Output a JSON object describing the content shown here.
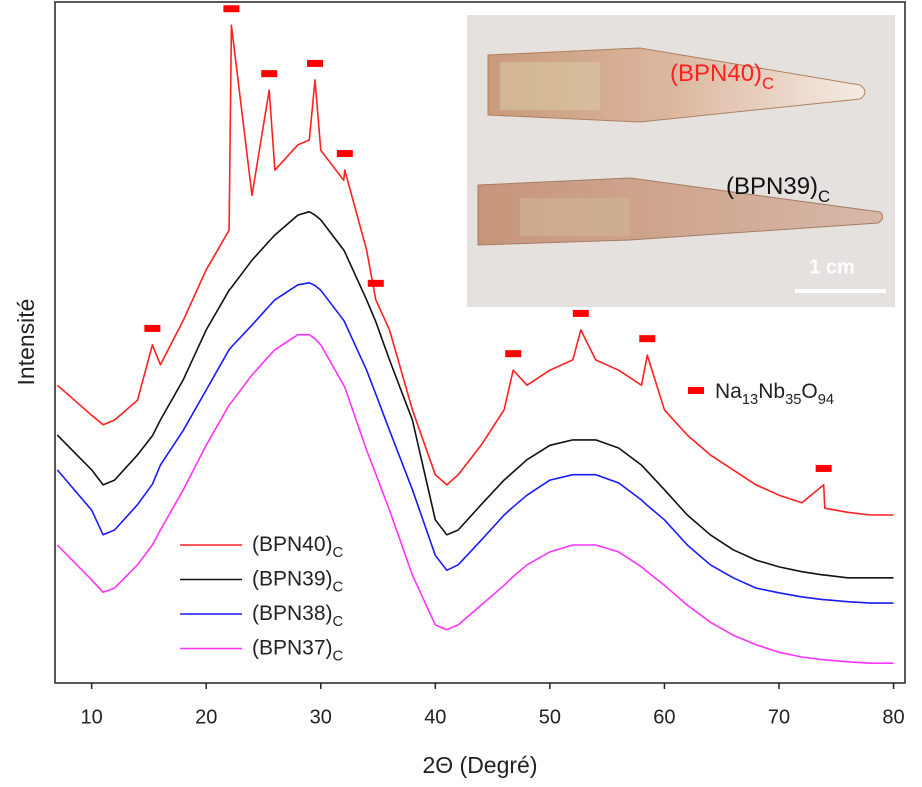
{
  "chart_data": {
    "type": "line",
    "xlabel": "2Θ (Degré)",
    "ylabel": "Intensité",
    "xlim": [
      6.8,
      81
    ],
    "xticks": [
      10,
      20,
      30,
      40,
      50,
      60,
      70,
      80
    ],
    "ylim": [
      0,
      100
    ],
    "x": [
      7,
      10,
      11,
      12,
      14,
      15.3,
      16,
      18,
      20,
      22,
      22.2,
      24,
      25.5,
      26,
      28,
      29,
      29.5,
      30,
      32,
      32.1,
      34,
      34.8,
      36,
      38,
      40,
      41,
      42,
      44,
      46,
      46.8,
      48,
      50,
      52,
      52.7,
      54,
      56,
      58,
      58.5,
      60,
      62,
      64,
      66,
      68,
      70,
      72,
      73.9,
      74,
      76,
      78,
      80
    ],
    "series": [
      {
        "name": "(BPN40)C",
        "color": "#ff2020",
        "values": [
          43.6,
          39.2,
          37.8,
          38.5,
          41.4,
          49.5,
          46.6,
          53.1,
          60.5,
          66.3,
          96.3,
          71.4,
          86.8,
          75.1,
          78.8,
          79.5,
          88.3,
          78.0,
          73.6,
          75.1,
          63.4,
          56.1,
          51.7,
          40.0,
          30.5,
          29.0,
          30.5,
          34.8,
          40.0,
          45.8,
          43.6,
          45.8,
          47.3,
          51.7,
          47.3,
          45.8,
          43.6,
          48.0,
          40.0,
          36.3,
          33.4,
          31.2,
          29.0,
          27.5,
          26.4,
          29.0,
          25.6,
          25.0,
          24.6,
          24.6
        ]
      },
      {
        "name": "(BPN39)C",
        "color": "#111111",
        "values": [
          36.3,
          31.2,
          29.0,
          29.7,
          33.4,
          36.2,
          38.5,
          44.4,
          51.7,
          57.5,
          57.9,
          61.9,
          64.7,
          65.6,
          68.5,
          69.0,
          68.5,
          67.8,
          63.4,
          63.1,
          56.1,
          52.9,
          47.3,
          38.5,
          23.9,
          21.7,
          22.4,
          26.1,
          29.7,
          30.9,
          32.7,
          34.8,
          35.6,
          35.6,
          35.6,
          34.4,
          31.9,
          31.0,
          28.3,
          24.6,
          21.7,
          19.5,
          18.0,
          17.0,
          16.3,
          15.8,
          15.8,
          15.4,
          15.4,
          15.4
        ]
      },
      {
        "name": "(BPN38)C",
        "color": "#1a1aff",
        "values": [
          31.2,
          25.3,
          21.7,
          22.4,
          26.1,
          29.1,
          31.9,
          37.0,
          42.9,
          48.8,
          49.2,
          52.4,
          55.2,
          56.1,
          58.3,
          58.6,
          58.2,
          57.5,
          53.1,
          52.8,
          45.8,
          42.3,
          37.0,
          28.3,
          18.7,
          16.5,
          17.3,
          20.9,
          24.6,
          25.8,
          27.5,
          29.7,
          30.5,
          30.5,
          30.5,
          29.3,
          26.8,
          26.0,
          23.9,
          20.2,
          17.3,
          15.4,
          13.9,
          13.2,
          12.6,
          12.2,
          12.2,
          11.9,
          11.7,
          11.7
        ]
      },
      {
        "name": "(BPN37)C",
        "color": "#ff33ff",
        "values": [
          20.2,
          15.1,
          13.3,
          13.9,
          17.3,
          20.2,
          22.4,
          28.3,
          34.8,
          40.7,
          41.1,
          45.1,
          47.9,
          48.8,
          51.0,
          51.0,
          50.4,
          49.5,
          43.6,
          43.3,
          34.1,
          30.6,
          25.3,
          15.8,
          8.5,
          7.8,
          8.5,
          11.4,
          14.3,
          15.6,
          17.3,
          19.2,
          20.2,
          20.2,
          20.2,
          19.2,
          17.0,
          16.3,
          14.3,
          11.4,
          8.9,
          7.0,
          5.6,
          4.5,
          3.8,
          3.4,
          3.4,
          3.1,
          2.9,
          2.9
        ]
      }
    ],
    "markers": {
      "name": "Na13Nb35O94",
      "color": "#ff0000",
      "x": [
        15.3,
        22.2,
        25.5,
        29.5,
        32.1,
        34.8,
        46.8,
        52.7,
        58.5,
        73.9
      ]
    },
    "inset": {
      "labels": [
        {
          "text": "(BPN40)C",
          "color": "#ff2020"
        },
        {
          "text": "(BPN39)C",
          "color": "#111111"
        }
      ],
      "scale": "1 cm"
    }
  }
}
